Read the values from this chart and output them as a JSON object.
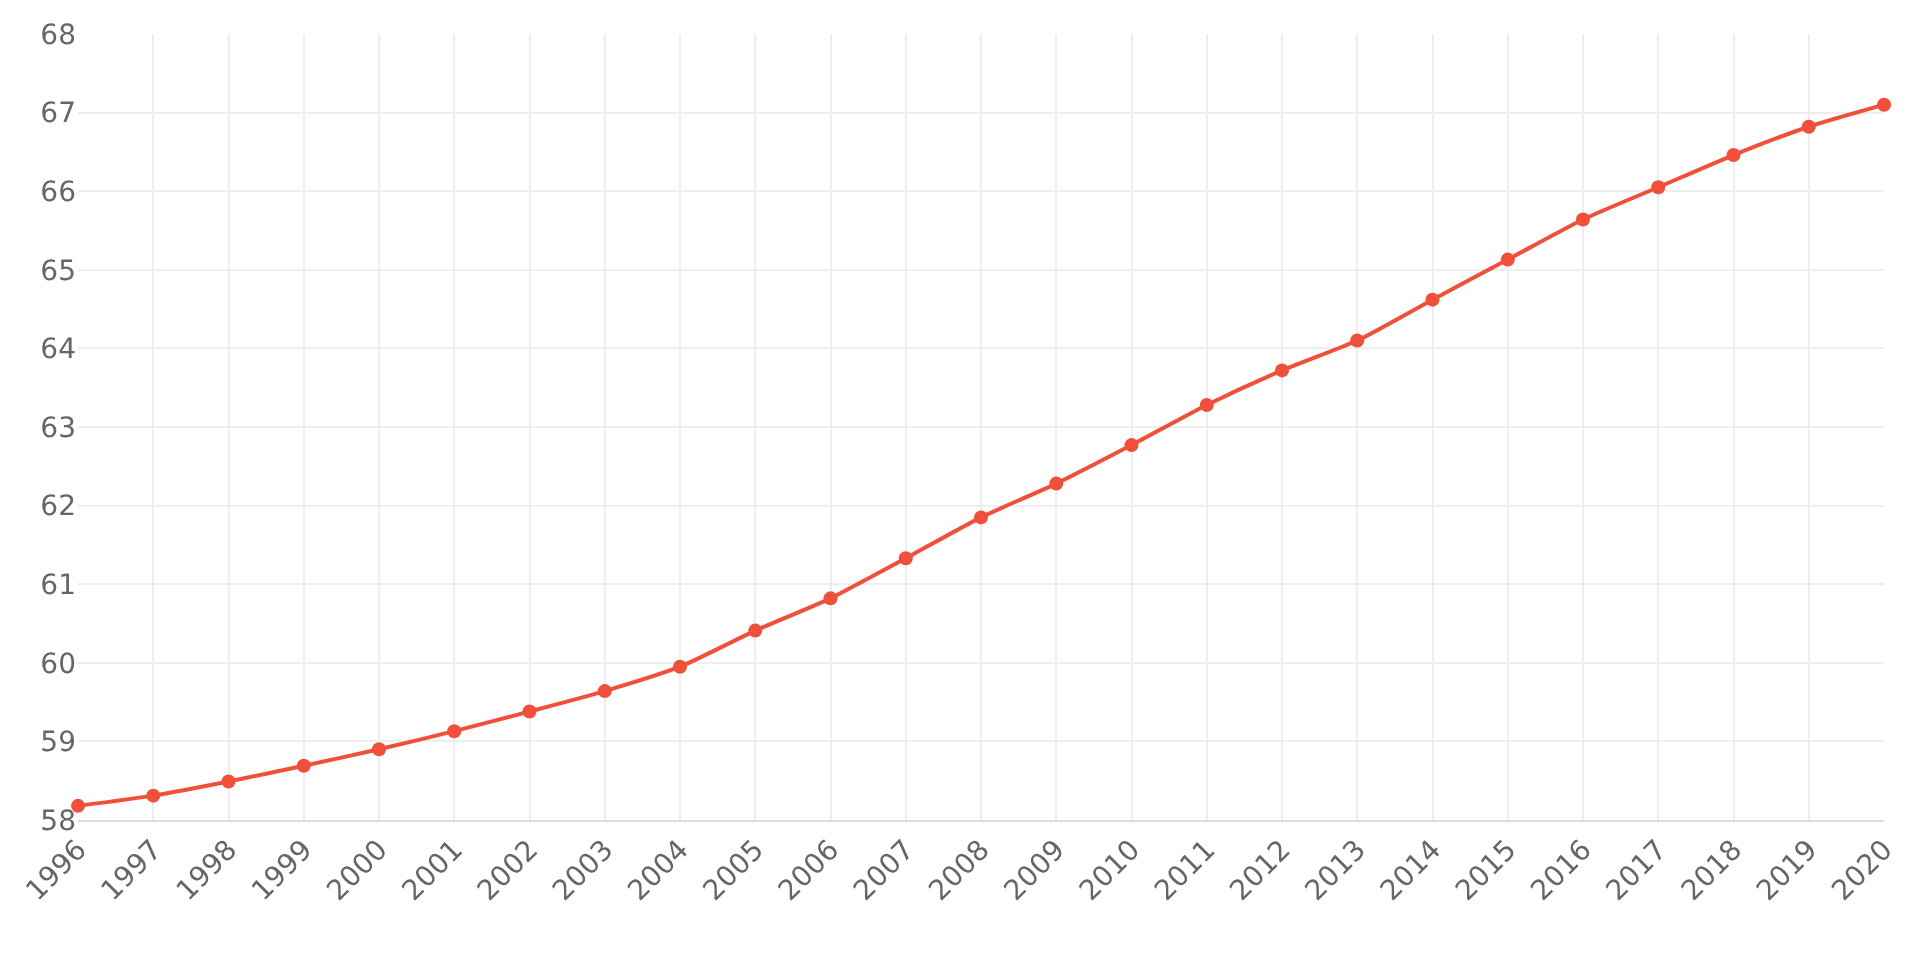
{
  "chart_data": {
    "type": "line",
    "categories": [
      "1996",
      "1997",
      "1998",
      "1999",
      "2000",
      "2001",
      "2002",
      "2003",
      "2004",
      "2005",
      "2006",
      "2007",
      "2008",
      "2009",
      "2010",
      "2011",
      "2012",
      "2013",
      "2014",
      "2015",
      "2016",
      "2017",
      "2018",
      "2019",
      "2020"
    ],
    "series": [
      {
        "color": "#f0503a",
        "values": [
          58.18,
          58.31,
          58.49,
          58.69,
          58.9,
          59.13,
          59.38,
          59.64,
          59.95,
          60.41,
          60.82,
          61.33,
          61.85,
          62.28,
          62.77,
          63.28,
          63.72,
          64.1,
          64.62,
          65.13,
          65.64,
          66.05,
          66.46,
          66.82,
          67.1
        ]
      }
    ],
    "ylim": [
      58,
      68
    ],
    "yticks": [
      58,
      59,
      60,
      61,
      62,
      63,
      64,
      65,
      66,
      67,
      68
    ],
    "grid": true,
    "marker": "circle",
    "line_style": "solid",
    "legend": false
  }
}
